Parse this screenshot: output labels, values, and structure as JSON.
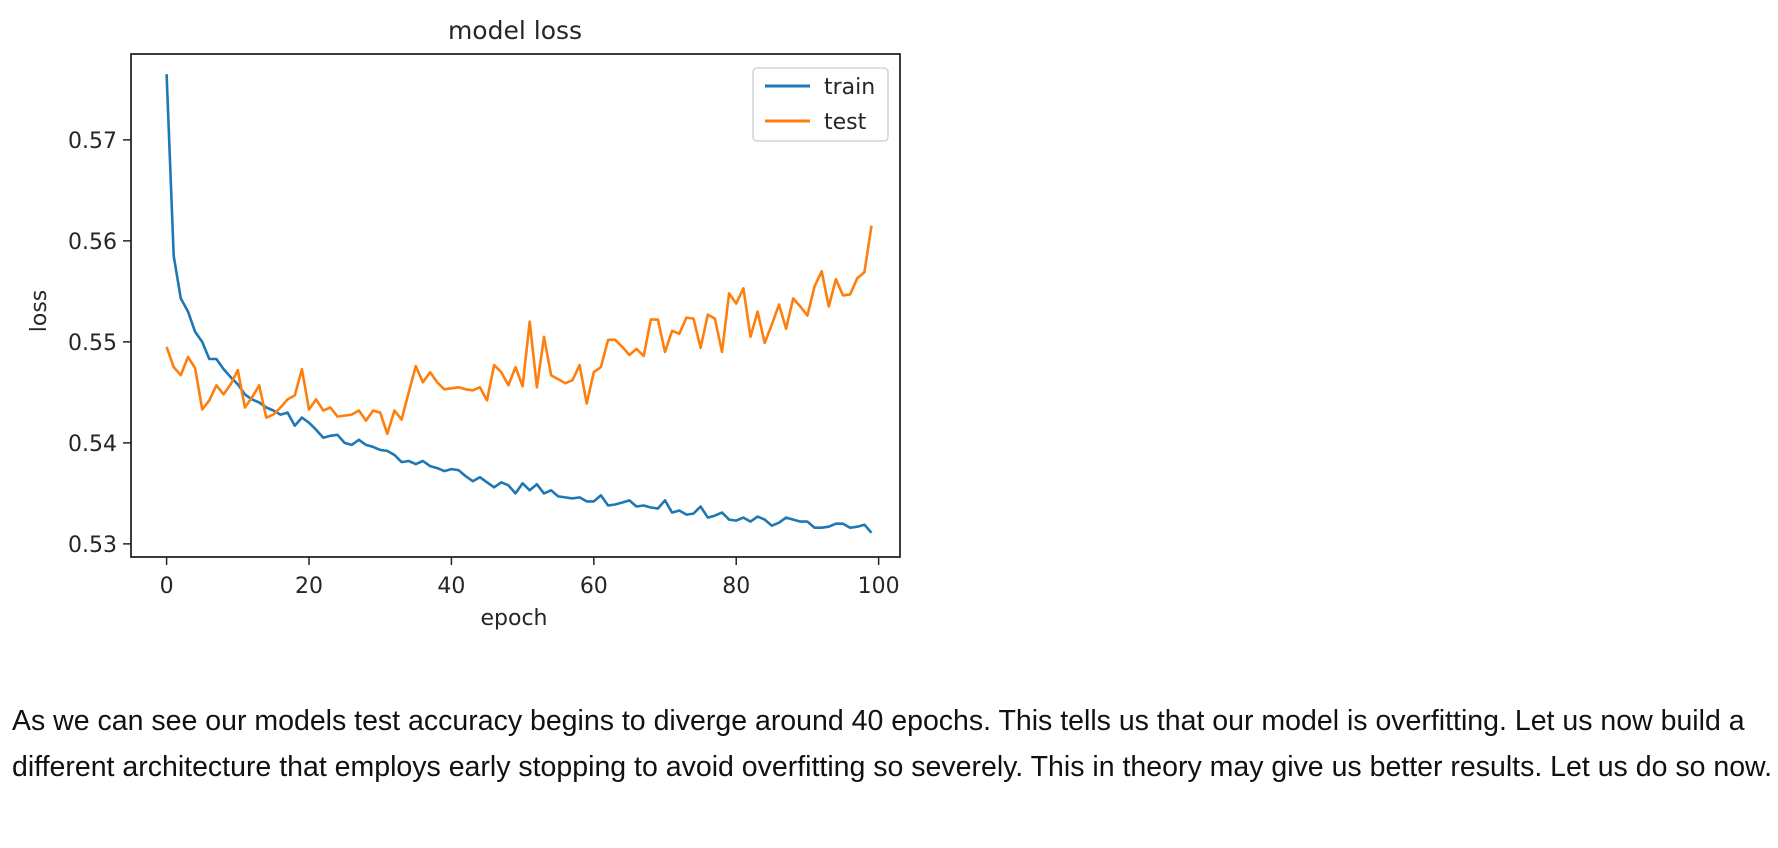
{
  "chart_data": {
    "type": "line",
    "title": "model loss",
    "xlabel": "epoch",
    "ylabel": "loss",
    "xlim": [
      -5,
      103
    ],
    "ylim": [
      0.5287,
      0.5785
    ],
    "xticks": [
      0,
      20,
      40,
      60,
      80,
      100
    ],
    "yticks": [
      0.53,
      0.54,
      0.55,
      0.56,
      0.57
    ],
    "xtick_labels": [
      "0",
      "20",
      "40",
      "60",
      "80",
      "100"
    ],
    "ytick_labels": [
      "0.53",
      "0.54",
      "0.55",
      "0.56",
      "0.57"
    ],
    "legend_position": "top-right",
    "grid": false,
    "series": [
      {
        "name": "train",
        "color": "#1f77b4",
        "x": [
          0,
          1,
          2,
          3,
          4,
          5,
          6,
          7,
          8,
          9,
          10,
          11,
          12,
          13,
          14,
          15,
          16,
          17,
          18,
          19,
          20,
          21,
          22,
          23,
          24,
          25,
          26,
          27,
          28,
          29,
          30,
          31,
          32,
          33,
          34,
          35,
          36,
          37,
          38,
          39,
          40,
          41,
          42,
          43,
          44,
          45,
          46,
          47,
          48,
          49,
          50,
          51,
          52,
          53,
          54,
          55,
          56,
          57,
          58,
          59,
          60,
          61,
          62,
          63,
          64,
          65,
          66,
          67,
          68,
          69,
          70,
          71,
          72,
          73,
          74,
          75,
          76,
          77,
          78,
          79,
          80,
          81,
          82,
          83,
          84,
          85,
          86,
          87,
          88,
          89,
          90,
          91,
          92,
          93,
          94,
          95,
          96,
          97,
          98,
          99
        ],
        "values": [
          0.5765,
          0.5585,
          0.5543,
          0.553,
          0.551,
          0.55,
          0.5483,
          0.5483,
          0.5473,
          0.5465,
          0.5458,
          0.5448,
          0.5443,
          0.544,
          0.5435,
          0.5432,
          0.5428,
          0.543,
          0.5417,
          0.5425,
          0.542,
          0.5413,
          0.5405,
          0.5407,
          0.5408,
          0.54,
          0.5398,
          0.5403,
          0.5398,
          0.5396,
          0.5393,
          0.5392,
          0.5388,
          0.5381,
          0.5382,
          0.5379,
          0.5382,
          0.5377,
          0.5375,
          0.5372,
          0.5374,
          0.5373,
          0.5367,
          0.5362,
          0.5366,
          0.5361,
          0.5356,
          0.5361,
          0.5358,
          0.535,
          0.536,
          0.5353,
          0.5359,
          0.535,
          0.5353,
          0.5347,
          0.5346,
          0.5345,
          0.5346,
          0.5342,
          0.5342,
          0.5348,
          0.5338,
          0.5339,
          0.5341,
          0.5343,
          0.5337,
          0.5338,
          0.5336,
          0.5335,
          0.5343,
          0.5331,
          0.5333,
          0.5329,
          0.533,
          0.5337,
          0.5326,
          0.5328,
          0.5331,
          0.5324,
          0.5323,
          0.5326,
          0.5322,
          0.5327,
          0.5324,
          0.5318,
          0.5321,
          0.5326,
          0.5324,
          0.5322,
          0.5322,
          0.5316,
          0.5316,
          0.5317,
          0.532,
          0.532,
          0.5316,
          0.5317,
          0.5319,
          0.5311
        ]
      },
      {
        "name": "test",
        "color": "#ff7f0e",
        "x": [
          0,
          1,
          2,
          3,
          4,
          5,
          6,
          7,
          8,
          9,
          10,
          11,
          12,
          13,
          14,
          15,
          16,
          17,
          18,
          19,
          20,
          21,
          22,
          23,
          24,
          25,
          26,
          27,
          28,
          29,
          30,
          31,
          32,
          33,
          34,
          35,
          36,
          37,
          38,
          39,
          40,
          41,
          42,
          43,
          44,
          45,
          46,
          47,
          48,
          49,
          50,
          51,
          52,
          53,
          54,
          55,
          56,
          57,
          58,
          59,
          60,
          61,
          62,
          63,
          64,
          65,
          66,
          67,
          68,
          69,
          70,
          71,
          72,
          73,
          74,
          75,
          76,
          77,
          78,
          79,
          80,
          81,
          82,
          83,
          84,
          85,
          86,
          87,
          88,
          89,
          90,
          91,
          92,
          93,
          94,
          95,
          96,
          97,
          98,
          99
        ],
        "values": [
          0.5495,
          0.5475,
          0.5467,
          0.5485,
          0.5474,
          0.5433,
          0.5442,
          0.5457,
          0.5448,
          0.5458,
          0.5472,
          0.5435,
          0.5445,
          0.5457,
          0.5425,
          0.5428,
          0.5435,
          0.5443,
          0.5447,
          0.5473,
          0.5433,
          0.5443,
          0.5432,
          0.5435,
          0.5426,
          0.5427,
          0.5428,
          0.5432,
          0.5422,
          0.5432,
          0.543,
          0.5409,
          0.5432,
          0.5423,
          0.545,
          0.5476,
          0.546,
          0.547,
          0.546,
          0.5453,
          0.5454,
          0.5455,
          0.5453,
          0.5452,
          0.5455,
          0.5442,
          0.5477,
          0.547,
          0.5457,
          0.5475,
          0.5456,
          0.552,
          0.5455,
          0.5505,
          0.5467,
          0.5463,
          0.5459,
          0.5462,
          0.5477,
          0.5439,
          0.547,
          0.5475,
          0.5502,
          0.5502,
          0.5495,
          0.5487,
          0.5493,
          0.5486,
          0.5522,
          0.5522,
          0.549,
          0.5511,
          0.5508,
          0.5524,
          0.5523,
          0.5494,
          0.5527,
          0.5523,
          0.549,
          0.5548,
          0.5538,
          0.5553,
          0.5505,
          0.553,
          0.5499,
          0.5517,
          0.5537,
          0.5513,
          0.5543,
          0.5535,
          0.5526,
          0.5555,
          0.557,
          0.5535,
          0.5562,
          0.5546,
          0.5547,
          0.5563,
          0.5569,
          0.5615
        ]
      }
    ]
  },
  "text": {
    "paragraph": "As we can see our models test accuracy begins to diverge around 40 epochs. This tells us that our model is overfitting. Let us now build a different architecture that employs early stopping to avoid overfitting so severely. This in theory may give us better results. Let us do so now."
  }
}
